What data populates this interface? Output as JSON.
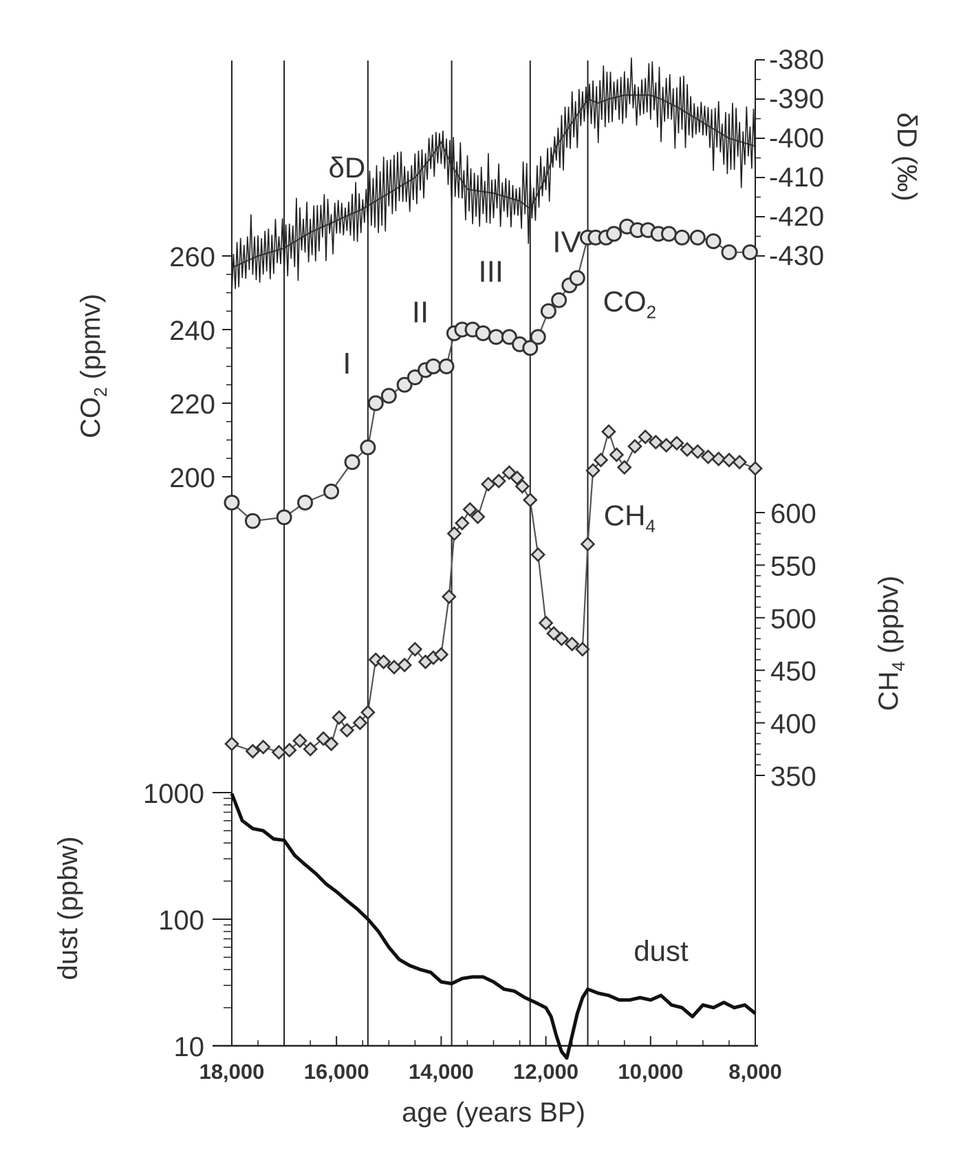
{
  "chart_data": {
    "type": "line",
    "x_axis": {
      "label": "age  (years BP)",
      "range": [
        18000,
        8000
      ],
      "ticks": [
        18000,
        16000,
        14000,
        12000,
        10000,
        8000
      ],
      "tick_labels": [
        "18,000",
        "16,000",
        "14,000",
        "12,000",
        "10,000",
        "8,000"
      ]
    },
    "axes": {
      "dD": {
        "label": "δD (‰)",
        "side": "right",
        "range": [
          -430,
          -380
        ],
        "ticks": [
          -380,
          -390,
          -400,
          -410,
          -420,
          -430
        ],
        "tick_labels": [
          "-380",
          "-390",
          "-400",
          "-410",
          "-420",
          "-430"
        ]
      },
      "co2": {
        "label_main": "CO",
        "label_sub": "2",
        "label_tail": " (ppmv)",
        "side": "left",
        "range": [
          200,
          260
        ],
        "ticks": [
          200,
          220,
          240,
          260
        ],
        "tick_labels": [
          "200",
          "220",
          "240",
          "260"
        ]
      },
      "ch4": {
        "label_main": "CH",
        "label_sub": "4",
        "label_tail": " (ppbv)",
        "side": "right",
        "range": [
          350,
          600
        ],
        "ticks": [
          350,
          400,
          450,
          500,
          550,
          600
        ],
        "tick_labels": [
          "350",
          "400",
          "450",
          "500",
          "550",
          "600"
        ]
      },
      "dust": {
        "label": "dust (ppbw)",
        "side": "left",
        "scale": "log",
        "range": [
          10,
          1000
        ],
        "ticks": [
          10,
          100,
          1000
        ],
        "tick_labels": [
          "10",
          "100",
          "1000"
        ]
      }
    },
    "period_boundaries": [
      17000,
      15400,
      13800,
      12300,
      11200
    ],
    "period_labels": [
      {
        "text": "I",
        "x": 15800,
        "axis": "co2",
        "y": 228
      },
      {
        "text": "II",
        "x": 14400,
        "axis": "co2",
        "y": 242
      },
      {
        "text": "III",
        "x": 13050,
        "axis": "co2",
        "y": 253
      },
      {
        "text": "IV",
        "x": 11600,
        "axis": "dD",
        "y": -429
      }
    ],
    "series": [
      {
        "name": "δD",
        "label_main": "δD",
        "label_sub": "",
        "axis": "dD",
        "style": "line-noisy",
        "label_pos": {
          "x": 15800,
          "y": -410
        },
        "x": [
          18000,
          17500,
          17000,
          16500,
          16000,
          15500,
          15000,
          14500,
          14200,
          14000,
          13800,
          13500,
          13000,
          12500,
          12300,
          12000,
          11800,
          11500,
          11200,
          11000,
          10800,
          10500,
          10000,
          9800,
          9500,
          9000,
          8500,
          8000
        ],
        "y": [
          -433,
          -430,
          -428,
          -424,
          -421,
          -418,
          -414,
          -410,
          -405,
          -401,
          -407,
          -413,
          -414,
          -416,
          -418,
          -410,
          -402,
          -396,
          -390,
          -391,
          -390,
          -389,
          -389,
          -390,
          -392,
          -396,
          -400,
          -402
        ]
      },
      {
        "name": "CO2",
        "label_main": "CO",
        "label_sub": "2",
        "axis": "co2",
        "style": "line-circles",
        "label_pos": {
          "x": 10400,
          "y": 245
        },
        "x": [
          18000,
          17600,
          17000,
          16600,
          16100,
          15700,
          15400,
          15250,
          15000,
          14700,
          14500,
          14300,
          14150,
          13900,
          13750,
          13600,
          13400,
          13200,
          12950,
          12700,
          12500,
          12300,
          12150,
          11950,
          11750,
          11550,
          11400,
          11200,
          11050,
          10850,
          10700,
          10450,
          10250,
          10050,
          9850,
          9650,
          9400,
          9100,
          8800,
          8500,
          8100
        ],
        "y": [
          193,
          188,
          189,
          193,
          196,
          204,
          208,
          220,
          222,
          225,
          227,
          229,
          230,
          230,
          239,
          240,
          240,
          239,
          238,
          238,
          236,
          235,
          238,
          245,
          248,
          252,
          254,
          265,
          265,
          265,
          266,
          268,
          267,
          267,
          266,
          266,
          265,
          265,
          264,
          261,
          261
        ]
      },
      {
        "name": "CH4",
        "label_main": "CH",
        "label_sub": "4",
        "axis": "ch4",
        "style": "line-diamonds",
        "label_pos": {
          "x": 10400,
          "y": 588
        },
        "x": [
          18000,
          17600,
          17400,
          17100,
          16900,
          16700,
          16500,
          16250,
          16100,
          15950,
          15800,
          15550,
          15400,
          15250,
          15100,
          14900,
          14700,
          14500,
          14300,
          14150,
          14000,
          13850,
          13750,
          13600,
          13450,
          13300,
          13100,
          12900,
          12700,
          12550,
          12450,
          12300,
          12150,
          12000,
          11850,
          11700,
          11500,
          11300,
          11200,
          11100,
          10950,
          10800,
          10650,
          10500,
          10300,
          10100,
          9900,
          9700,
          9500,
          9300,
          9100,
          8900,
          8700,
          8500,
          8300,
          8000
        ],
        "y": [
          380,
          373,
          377,
          372,
          374,
          383,
          375,
          385,
          380,
          405,
          393,
          400,
          410,
          460,
          458,
          453,
          455,
          470,
          458,
          462,
          465,
          520,
          580,
          590,
          603,
          596,
          627,
          630,
          638,
          633,
          625,
          612,
          560,
          495,
          485,
          480,
          475,
          470,
          570,
          640,
          650,
          677,
          655,
          643,
          663,
          672,
          667,
          664,
          666,
          660,
          658,
          653,
          651,
          650,
          648,
          642
        ]
      },
      {
        "name": "dust",
        "label_main": "dust",
        "label_sub": "",
        "axis": "dust",
        "style": "line-bold",
        "label_pos": {
          "x": 9800,
          "y": 47
        },
        "x": [
          18000,
          17800,
          17600,
          17400,
          17200,
          17000,
          16800,
          16600,
          16400,
          16200,
          16000,
          15800,
          15600,
          15400,
          15200,
          15000,
          14800,
          14600,
          14400,
          14200,
          14000,
          13800,
          13600,
          13400,
          13200,
          13000,
          12800,
          12600,
          12400,
          12200,
          12000,
          11900,
          11800,
          11700,
          11600,
          11500,
          11400,
          11300,
          11200,
          11000,
          10800,
          10600,
          10400,
          10200,
          10000,
          9800,
          9600,
          9400,
          9200,
          9000,
          8800,
          8600,
          8400,
          8200,
          8000
        ],
        "y": [
          980,
          600,
          520,
          500,
          430,
          420,
          320,
          270,
          230,
          190,
          165,
          140,
          120,
          100,
          80,
          60,
          48,
          43,
          40,
          38,
          32,
          31,
          34,
          35,
          35,
          32,
          28,
          27,
          24,
          22,
          20,
          17,
          12,
          9,
          8,
          12,
          18,
          24,
          28,
          26,
          25,
          23,
          23,
          24,
          23,
          25,
          21,
          20,
          17,
          21,
          20,
          22,
          20,
          21,
          18
        ]
      }
    ]
  }
}
